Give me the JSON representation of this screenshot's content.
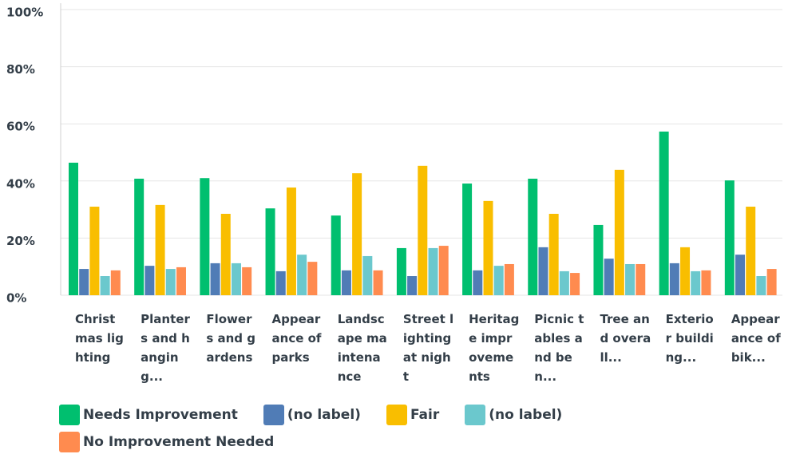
{
  "chart_data": {
    "type": "bar",
    "categories": [
      "Christmas lighting",
      "Planters and hanging...",
      "Flowers and gardens",
      "Appearance of parks",
      "Landscape maintenance",
      "Street lighting at night",
      "Heritage improvements",
      "Picnic tables and ben...",
      "Tree and overall...",
      "Exterior building...",
      "Appearance of bik..."
    ],
    "series": [
      {
        "name": "Needs Improvement",
        "color": "#00bf6f",
        "values": [
          46.4,
          40.8,
          41,
          30.4,
          27.9,
          16.5,
          39.1,
          40.8,
          24.6,
          57.3,
          40.2
        ]
      },
      {
        "name": "(no label)",
        "color": "#507cb6",
        "values": [
          9.2,
          10.3,
          11.2,
          8.4,
          8.7,
          6.7,
          8.7,
          16.8,
          12.8,
          11.2,
          14.2
        ]
      },
      {
        "name": "Fair",
        "color": "#f9be00",
        "values": [
          31,
          31.6,
          28.5,
          37.7,
          42.7,
          45.3,
          33,
          28.5,
          43.9,
          16.8,
          31
        ]
      },
      {
        "name": "(no label)",
        "color": "#6bc8cd",
        "values": [
          6.7,
          9.2,
          11.2,
          14.2,
          13.7,
          16.5,
          10.3,
          8.4,
          10.9,
          8.4,
          6.7
        ]
      },
      {
        "name": "No Improvement Needed",
        "color": "#ff8b4f",
        "values": [
          8.7,
          9.8,
          9.8,
          11.7,
          8.7,
          17.3,
          10.9,
          7.8,
          10.9,
          8.7,
          9.2
        ]
      }
    ],
    "ylim": [
      0,
      100
    ],
    "yticks": [
      {
        "value": 0,
        "label": "0%"
      },
      {
        "value": 20,
        "label": "20%"
      },
      {
        "value": 40,
        "label": "40%"
      },
      {
        "value": 60,
        "label": "60%"
      },
      {
        "value": 80,
        "label": "80%"
      },
      {
        "value": 100,
        "label": "100%"
      }
    ],
    "grid": true
  }
}
